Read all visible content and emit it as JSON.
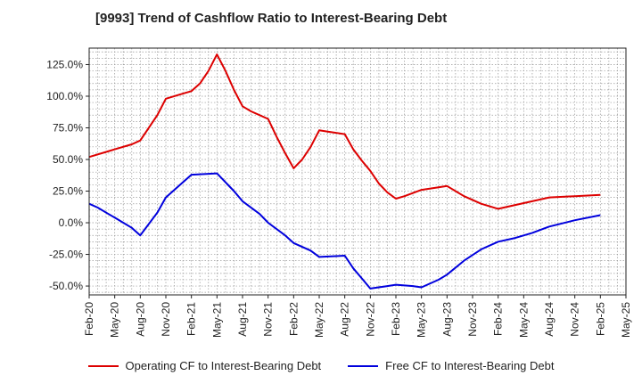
{
  "chart_data": {
    "type": "line",
    "title": "[9993]  Trend of Cashflow Ratio to Interest-Bearing Debt",
    "xlabel": "",
    "ylabel": "",
    "x_ticks": [
      "Feb-20",
      "May-20",
      "Aug-20",
      "Nov-20",
      "Feb-21",
      "May-21",
      "Aug-21",
      "Nov-21",
      "Feb-22",
      "May-22",
      "Aug-22",
      "Nov-22",
      "Feb-23",
      "May-23",
      "Aug-23",
      "Nov-23",
      "Feb-24",
      "May-24",
      "Aug-24",
      "Nov-24",
      "Feb-25",
      "May-25"
    ],
    "y_ticks": [
      "125.0%",
      "100.0%",
      "75.0%",
      "50.0%",
      "25.0%",
      "0.0%",
      "-25.0%",
      "-50.0%"
    ],
    "y_tick_values": [
      125,
      100,
      75,
      50,
      25,
      0,
      -25,
      -50
    ],
    "ylim": [
      -57,
      138
    ],
    "x_range_months": [
      0,
      63
    ],
    "grid": true,
    "legend_position": "bottom",
    "series": [
      {
        "name": "Operating CF to Interest-Bearing Debt",
        "color": "#dd0000",
        "points": [
          [
            "2020-02",
            52
          ],
          [
            "2020-04",
            56
          ],
          [
            "2020-05",
            58
          ],
          [
            "2020-07",
            62
          ],
          [
            "2020-08",
            65
          ],
          [
            "2020-10",
            85
          ],
          [
            "2020-11",
            98
          ],
          [
            "2021-01",
            102
          ],
          [
            "2021-02",
            104
          ],
          [
            "2021-03",
            110
          ],
          [
            "2021-04",
            120
          ],
          [
            "2021-05",
            133
          ],
          [
            "2021-06",
            120
          ],
          [
            "2021-07",
            105
          ],
          [
            "2021-08",
            92
          ],
          [
            "2021-09",
            88
          ],
          [
            "2021-11",
            82
          ],
          [
            "2021-12",
            68
          ],
          [
            "2022-01",
            55
          ],
          [
            "2022-02",
            43
          ],
          [
            "2022-03",
            50
          ],
          [
            "2022-04",
            60
          ],
          [
            "2022-05",
            73
          ],
          [
            "2022-06",
            72
          ],
          [
            "2022-08",
            70
          ],
          [
            "2022-09",
            58
          ],
          [
            "2022-10",
            49
          ],
          [
            "2022-11",
            41
          ],
          [
            "2022-12",
            31
          ],
          [
            "2023-01",
            24
          ],
          [
            "2023-02",
            19
          ],
          [
            "2023-03",
            21
          ],
          [
            "2023-05",
            26
          ],
          [
            "2023-07",
            28
          ],
          [
            "2023-08",
            29
          ],
          [
            "2023-10",
            21
          ],
          [
            "2023-12",
            15
          ],
          [
            "2024-02",
            11
          ],
          [
            "2024-04",
            14
          ],
          [
            "2024-06",
            17
          ],
          [
            "2024-08",
            20
          ],
          [
            "2024-11",
            21
          ],
          [
            "2025-02",
            22
          ]
        ]
      },
      {
        "name": "Free CF to Interest-Bearing Debt",
        "color": "#0000dd",
        "points": [
          [
            "2020-02",
            15
          ],
          [
            "2020-03",
            12
          ],
          [
            "2020-04",
            8
          ],
          [
            "2020-05",
            4
          ],
          [
            "2020-07",
            -4
          ],
          [
            "2020-08",
            -10
          ],
          [
            "2020-10",
            8
          ],
          [
            "2020-11",
            20
          ],
          [
            "2021-01",
            32
          ],
          [
            "2021-02",
            38
          ],
          [
            "2021-05",
            39
          ],
          [
            "2021-06",
            32
          ],
          [
            "2021-07",
            25
          ],
          [
            "2021-08",
            17
          ],
          [
            "2021-10",
            7
          ],
          [
            "2021-11",
            0
          ],
          [
            "2022-01",
            -10
          ],
          [
            "2022-02",
            -16
          ],
          [
            "2022-04",
            -22
          ],
          [
            "2022-05",
            -27
          ],
          [
            "2022-08",
            -26
          ],
          [
            "2022-09",
            -36
          ],
          [
            "2022-10",
            -44
          ],
          [
            "2022-11",
            -52
          ],
          [
            "2023-01",
            -50
          ],
          [
            "2023-02",
            -49
          ],
          [
            "2023-04",
            -50
          ],
          [
            "2023-05",
            -51
          ],
          [
            "2023-07",
            -45
          ],
          [
            "2023-08",
            -41
          ],
          [
            "2023-10",
            -30
          ],
          [
            "2023-12",
            -21
          ],
          [
            "2024-02",
            -15
          ],
          [
            "2024-04",
            -12
          ],
          [
            "2024-06",
            -8
          ],
          [
            "2024-08",
            -3
          ],
          [
            "2024-11",
            2
          ],
          [
            "2025-02",
            6
          ]
        ]
      }
    ]
  }
}
